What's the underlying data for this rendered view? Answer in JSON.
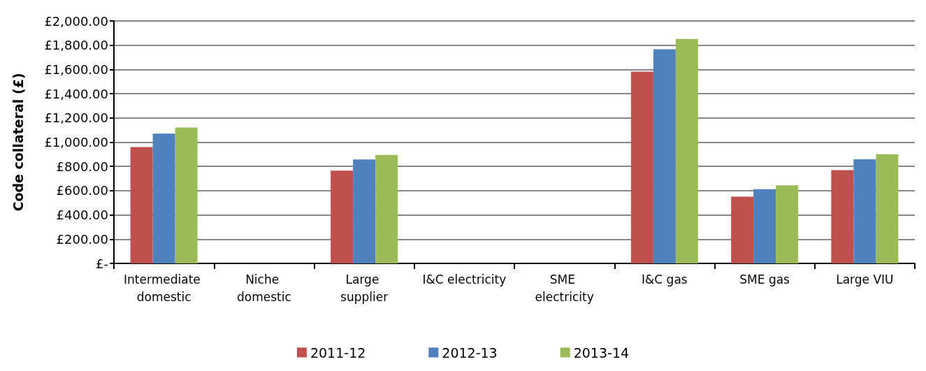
{
  "chart_data": {
    "type": "bar",
    "ylabel": "Code collateral (£)",
    "categories": [
      "Intermediate domestic",
      "Niche domestic",
      "Large supplier",
      "I&C electricity",
      "SME electricity",
      "I&C gas",
      "SME gas",
      "Large VIU"
    ],
    "series": [
      {
        "name": "2011-12",
        "color": "#c0504d",
        "values": [
          960,
          null,
          765,
          null,
          null,
          1582,
          550,
          769
        ]
      },
      {
        "name": "2012-13",
        "color": "#4f81bd",
        "values": [
          1070,
          null,
          857,
          null,
          null,
          1766,
          613,
          859
        ]
      },
      {
        "name": "2013-14",
        "color": "#9bbb59",
        "values": [
          1121,
          null,
          895,
          null,
          null,
          1851,
          644,
          900
        ]
      }
    ],
    "ylim": [
      0,
      2000
    ],
    "yticks": [
      {
        "value": 0,
        "label": "£-"
      },
      {
        "value": 200,
        "label": "£200.00"
      },
      {
        "value": 400,
        "label": "£400.00"
      },
      {
        "value": 600,
        "label": "£600.00"
      },
      {
        "value": 800,
        "label": "£800.00"
      },
      {
        "value": 1000,
        "label": "£1,000.00"
      },
      {
        "value": 1200,
        "label": "£1,200.00"
      },
      {
        "value": 1400,
        "label": "£1,400.00"
      },
      {
        "value": 1600,
        "label": "£1,600.00"
      },
      {
        "value": 1800,
        "label": "£1,800.00"
      },
      {
        "value": 2000,
        "label": "£2,000.00"
      }
    ],
    "grid": "y",
    "legend": "bottom"
  }
}
